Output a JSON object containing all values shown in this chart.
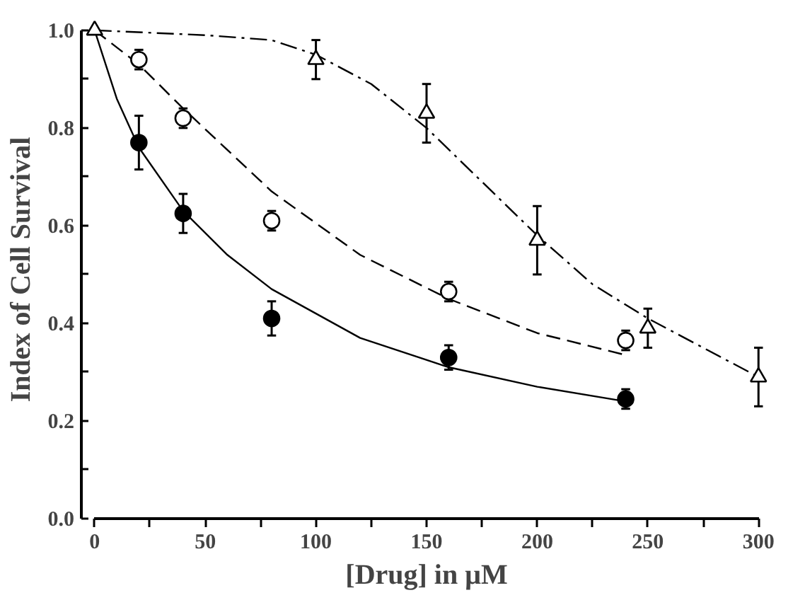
{
  "chart_data": {
    "type": "scatter",
    "xlabel": "[Drug] in μM",
    "ylabel": "Index of Cell Survival",
    "xlim": [
      0,
      300
    ],
    "ylim": [
      0,
      1.0
    ],
    "xticks": [
      0,
      {
        "value": 25,
        "label": null
      },
      50,
      {
        "value": 75,
        "label": null
      },
      100,
      {
        "value": 125,
        "label": null
      },
      150,
      {
        "value": 175,
        "label": null
      },
      200,
      {
        "value": 225,
        "label": null
      },
      250,
      {
        "value": 275,
        "label": null
      },
      300
    ],
    "yticks": [
      {
        "value": 0,
        "label": "0.0"
      },
      {
        "value": 0.1,
        "label": null
      },
      {
        "value": 0.2,
        "label": "0.2"
      },
      {
        "value": 0.3,
        "label": null
      },
      {
        "value": 0.4,
        "label": "0.4"
      },
      {
        "value": 0.5,
        "label": null
      },
      {
        "value": 0.6,
        "label": "0.6"
      },
      {
        "value": 0.7,
        "label": null
      },
      {
        "value": 0.8,
        "label": "0.8"
      },
      {
        "value": 0.9,
        "label": null
      },
      {
        "value": 1.0,
        "label": "1.0"
      }
    ],
    "grid": false,
    "series": [
      {
        "type": "line",
        "color": "#000000",
        "line_style": "solid",
        "marker": "none",
        "x": [
          0,
          10,
          20,
          40,
          60,
          80,
          120,
          160,
          200,
          240
        ],
        "values": [
          1.0,
          0.86,
          0.76,
          0.63,
          0.54,
          0.47,
          0.37,
          0.31,
          0.27,
          0.24
        ]
      },
      {
        "type": "line",
        "color": "#000000",
        "line_style": "dashed",
        "marker": "none",
        "x": [
          0,
          20,
          40,
          80,
          120,
          160,
          200,
          240
        ],
        "values": [
          1.0,
          0.93,
          0.84,
          0.67,
          0.54,
          0.45,
          0.38,
          0.335
        ]
      },
      {
        "type": "line",
        "color": "#000000",
        "line_style": "dashdot",
        "marker": "none",
        "x": [
          0,
          50,
          80,
          100,
          125,
          150,
          175,
          200,
          225,
          250,
          275,
          300
        ],
        "values": [
          1.0,
          0.99,
          0.98,
          0.95,
          0.89,
          0.8,
          0.69,
          0.58,
          0.48,
          0.41,
          0.35,
          0.29
        ]
      },
      {
        "color": "#000000",
        "marker": "circle",
        "x": [
          20,
          40,
          80,
          160,
          240
        ],
        "values": [
          0.77,
          0.625,
          0.41,
          0.33,
          0.245
        ],
        "errors": [
          0.055,
          0.04,
          0.035,
          0.025,
          0.02
        ]
      },
      {
        "color": "#ffffff",
        "marker": "circle",
        "x": [
          20,
          40,
          80,
          160,
          240
        ],
        "values": [
          0.94,
          0.82,
          0.61,
          0.465,
          0.365
        ],
        "errors": [
          0.02,
          0.02,
          0.02,
          0.02,
          0.02
        ]
      },
      {
        "color": "#ffffff",
        "marker": "triangle",
        "x": [
          0,
          100,
          150,
          200,
          250,
          300
        ],
        "values": [
          1.0,
          0.94,
          0.83,
          0.57,
          0.39,
          0.29
        ],
        "errors": [
          null,
          0.04,
          0.06,
          0.07,
          0.04,
          0.06
        ]
      }
    ]
  }
}
